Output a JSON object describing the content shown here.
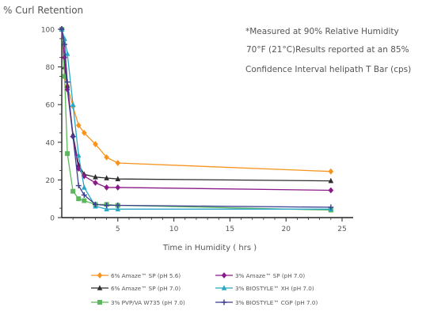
{
  "chart_data": {
    "type": "line",
    "ylabel": "% Curl Retention",
    "xlabel": "Time in Humidity  ( hrs )",
    "xlim": [
      0,
      25
    ],
    "ylim": [
      0,
      100
    ],
    "xticks": [
      "5",
      "10",
      "15",
      "20",
      "25"
    ],
    "xtick_values": [
      5,
      10,
      15,
      20,
      25
    ],
    "yticks": [
      "0",
      "20",
      "40",
      "60",
      "80",
      "100"
    ],
    "ytick_values": [
      0,
      20,
      40,
      60,
      80,
      100
    ],
    "grid": false,
    "legend_position": "bottom",
    "annotations": [
      "*Measured at 90% Relative Humidity",
      "70°F (21°C)Results reported at an 85%",
      "Confidence Interval helipath T Bar (cps)"
    ],
    "series": [
      {
        "name": "6% Amaze™ SP (pH 5.6)",
        "color": "#f7941d",
        "marker": "diamond",
        "points": [
          [
            0,
            100
          ],
          [
            0.25,
            75
          ],
          [
            0.5,
            70
          ],
          [
            1,
            59
          ],
          [
            1.5,
            49
          ],
          [
            2,
            45
          ],
          [
            3,
            39
          ],
          [
            4,
            32
          ],
          [
            5,
            29
          ],
          [
            24,
            24.5
          ]
        ]
      },
      {
        "name": "6% Amaze™ SP (pH 7.0)",
        "color": "#2d2d2d",
        "marker": "triangle",
        "points": [
          [
            0,
            100
          ],
          [
            0.25,
            80
          ],
          [
            0.5,
            70
          ],
          [
            1,
            44
          ],
          [
            1.5,
            28
          ],
          [
            2,
            23
          ],
          [
            3,
            21.5
          ],
          [
            4,
            21
          ],
          [
            5,
            20.5
          ],
          [
            24,
            19.5
          ]
        ]
      },
      {
        "name": "3% PVP/VA W735 (pH 7.0)",
        "color": "#5cb85c",
        "marker": "square",
        "points": [
          [
            0,
            100
          ],
          [
            0.25,
            75
          ],
          [
            0.5,
            34
          ],
          [
            1,
            14
          ],
          [
            1.5,
            10
          ],
          [
            2,
            9
          ],
          [
            3,
            7
          ],
          [
            4,
            7
          ],
          [
            5,
            6.5
          ],
          [
            24,
            4
          ]
        ]
      },
      {
        "name": "3% Amaze™ SP (pH 7.0)",
        "color": "#8b1a89",
        "marker": "diamond",
        "points": [
          [
            0,
            100
          ],
          [
            0.25,
            85
          ],
          [
            0.5,
            68
          ],
          [
            1,
            43
          ],
          [
            1.5,
            26
          ],
          [
            2,
            22
          ],
          [
            3,
            18.5
          ],
          [
            4,
            16
          ],
          [
            5,
            16
          ],
          [
            24,
            14.5
          ]
        ]
      },
      {
        "name": "3% BIOSTYLE™ XH (pH 7.0)",
        "color": "#29a8c5",
        "marker": "triangle",
        "points": [
          [
            0,
            100
          ],
          [
            0.25,
            95
          ],
          [
            0.5,
            87
          ],
          [
            1,
            60
          ],
          [
            1.5,
            33
          ],
          [
            2,
            16
          ],
          [
            3,
            6
          ],
          [
            4,
            4.5
          ],
          [
            5,
            4.5
          ],
          [
            24,
            4.5
          ]
        ]
      },
      {
        "name": "3% BIOSTYLE™ CGP (pH 7.0)",
        "color": "#3b3f8f",
        "marker": "plus",
        "points": [
          [
            0,
            100
          ],
          [
            0.25,
            92
          ],
          [
            0.5,
            72
          ],
          [
            1,
            43
          ],
          [
            1.5,
            17
          ],
          [
            2,
            12
          ],
          [
            3,
            7
          ],
          [
            4,
            6.5
          ],
          [
            5,
            6.5
          ],
          [
            24,
            5.5
          ]
        ]
      }
    ]
  }
}
